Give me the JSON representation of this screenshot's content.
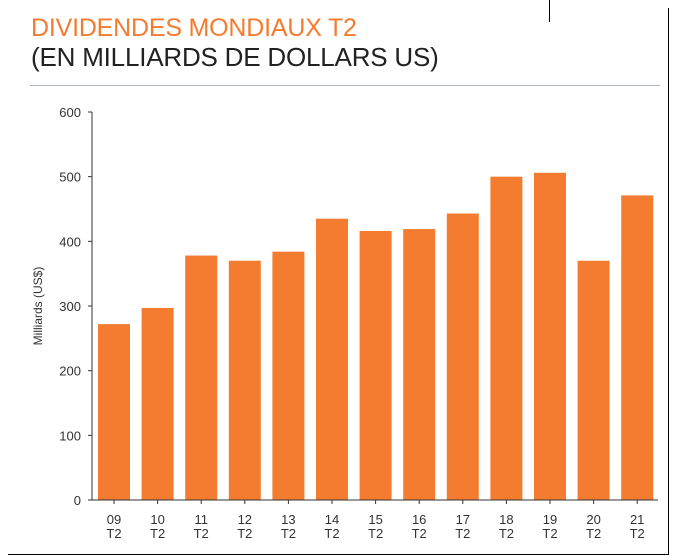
{
  "title_line1": "DIVIDENDES MONDIAUX T2",
  "title_line2": "(EN MILLIARDS DE DOLLARS US)",
  "colors": {
    "bar": "#f47c30",
    "title_accent": "#f47c30",
    "axis": "#333333"
  },
  "chart_data": {
    "type": "bar",
    "title": "DIVIDENDES MONDIAUX T2 (EN MILLIARDS DE DOLLARS US)",
    "xlabel": "",
    "ylabel": "Milliards (US$)",
    "ylim": [
      0,
      600
    ],
    "yticks": [
      "0",
      "100",
      "200",
      "300",
      "400",
      "500",
      "600"
    ],
    "categories": [
      [
        "09",
        "T2"
      ],
      [
        "10",
        "T2"
      ],
      [
        "11",
        "T2"
      ],
      [
        "12",
        "T2"
      ],
      [
        "13",
        "T2"
      ],
      [
        "14",
        "T2"
      ],
      [
        "15",
        "T2"
      ],
      [
        "16",
        "T2"
      ],
      [
        "17",
        "T2"
      ],
      [
        "18",
        "T2"
      ],
      [
        "19",
        "T2"
      ],
      [
        "20",
        "T2"
      ],
      [
        "21",
        "T2"
      ]
    ],
    "values": [
      272,
      297,
      378,
      370,
      384,
      435,
      416,
      419,
      443,
      500,
      506,
      370,
      471
    ],
    "grid": false,
    "legend": "none"
  }
}
